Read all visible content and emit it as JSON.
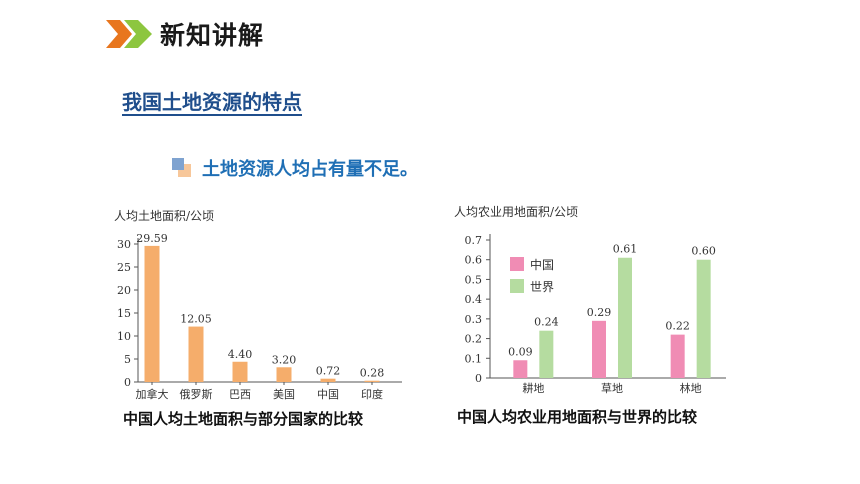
{
  "header": {
    "title": "新知讲解",
    "icon": "double-chevron-right-icon",
    "icon_colors": [
      "#e8761e",
      "#8dc63f"
    ]
  },
  "section_title": "我国土地资源的特点",
  "bullet": {
    "text": "土地资源人均占有量不足。",
    "icon": "stacked-squares-icon"
  },
  "chart_left": {
    "caption": "中国人均土地面积与部分国家的比较"
  },
  "chart_right": {
    "caption": "中国人均农业用地面积与世界的比较"
  },
  "chart_data": [
    {
      "type": "bar",
      "ylabel": "人均土地面积/公顷",
      "categories": [
        "加拿大",
        "俄罗斯",
        "巴西",
        "美国",
        "中国",
        "印度"
      ],
      "values": [
        29.59,
        12.05,
        4.4,
        3.2,
        0.72,
        0.28
      ],
      "value_labels": [
        "29.59",
        "12.05",
        "4.40",
        "3.20",
        "0.72",
        "0.28"
      ],
      "ylim": [
        0,
        30
      ],
      "yticks": [
        "0",
        "5",
        "10",
        "15",
        "20",
        "25",
        "30"
      ],
      "color": "#f5ad6b",
      "grid": false
    },
    {
      "type": "bar",
      "ylabel": "人均农业用地面积/公顷",
      "categories": [
        "耕地",
        "草地",
        "林地"
      ],
      "series": [
        {
          "name": "中国",
          "values": [
            0.09,
            0.29,
            0.22
          ],
          "labels": [
            "0.09",
            "0.29",
            "0.22"
          ],
          "color": "#f08cb4"
        },
        {
          "name": "世界",
          "values": [
            0.24,
            0.61,
            0.6
          ],
          "labels": [
            "0.24",
            "0.61",
            "0.60"
          ],
          "color": "#b5dca0"
        }
      ],
      "ylim": [
        0,
        0.7
      ],
      "yticks": [
        "0",
        "0.1",
        "0.2",
        "0.3",
        "0.4",
        "0.5",
        "0.6",
        "0.7"
      ],
      "legend_position": "top-left",
      "grid": false
    }
  ]
}
